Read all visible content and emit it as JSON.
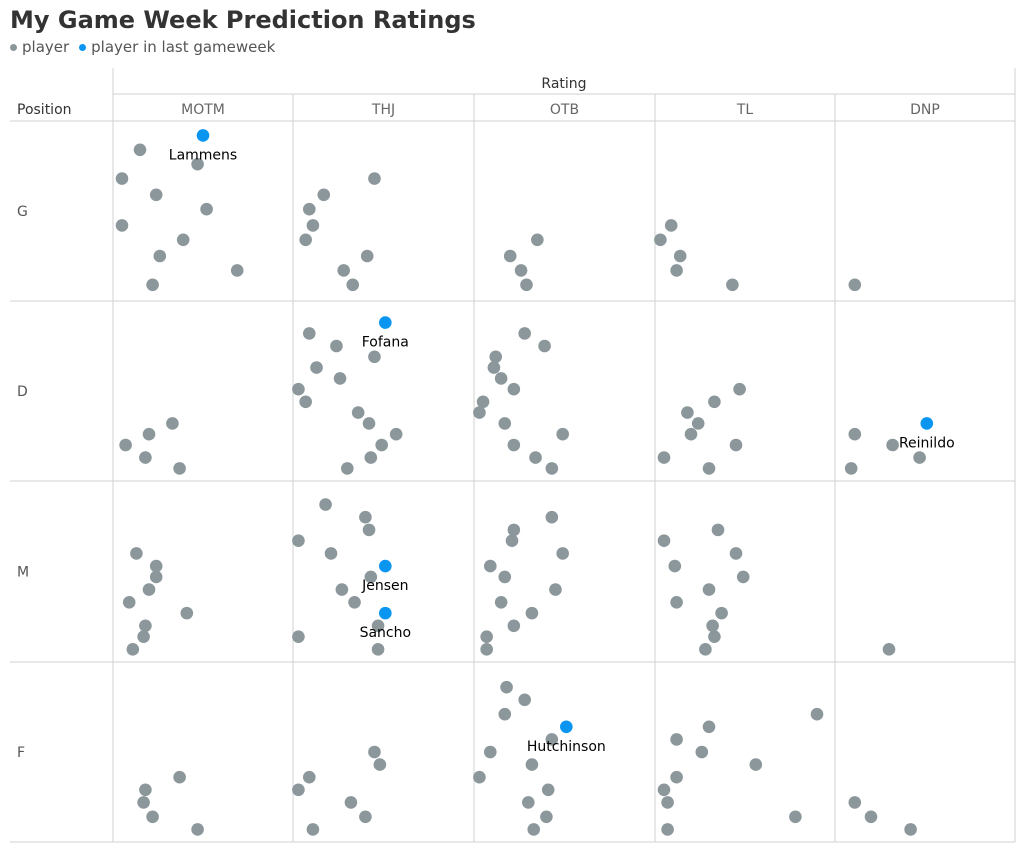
{
  "title": "My Game Week Prediction Ratings",
  "legend": [
    {
      "label": "player",
      "color": "#8c979b"
    },
    {
      "label": "player in last gameweek",
      "color": "#0a96f0"
    }
  ],
  "chart_data": {
    "type": "scatter",
    "title": "My Game Week Prediction Ratings",
    "facet_header": "Rating",
    "row_header": "Position",
    "columns": [
      "MOTM",
      "THJ",
      "OTB",
      "TL",
      "DNP"
    ],
    "rows": [
      "G",
      "D",
      "M",
      "F"
    ],
    "series": [
      {
        "name": "player",
        "color": "#8c979b"
      },
      {
        "name": "player in last gameweek",
        "color": "#0a96f0"
      }
    ],
    "points": [
      {
        "c": 0,
        "r": 0,
        "x": 0.15,
        "y": 0.84,
        "s": 0
      },
      {
        "c": 0,
        "r": 0,
        "x": 0.47,
        "y": 0.76,
        "s": 0
      },
      {
        "c": 0,
        "r": 0,
        "x": 0.05,
        "y": 0.68,
        "s": 0
      },
      {
        "c": 0,
        "r": 0,
        "x": 0.24,
        "y": 0.59,
        "s": 0
      },
      {
        "c": 0,
        "r": 0,
        "x": 0.52,
        "y": 0.51,
        "s": 0
      },
      {
        "c": 0,
        "r": 0,
        "x": 0.05,
        "y": 0.42,
        "s": 0
      },
      {
        "c": 0,
        "r": 0,
        "x": 0.39,
        "y": 0.34,
        "s": 0
      },
      {
        "c": 0,
        "r": 0,
        "x": 0.26,
        "y": 0.25,
        "s": 0
      },
      {
        "c": 0,
        "r": 0,
        "x": 0.69,
        "y": 0.17,
        "s": 0
      },
      {
        "c": 0,
        "r": 0,
        "x": 0.22,
        "y": 0.09,
        "s": 0
      },
      {
        "c": 0,
        "r": 0,
        "x": 0.5,
        "y": 0.92,
        "s": 1,
        "label": "Lammens"
      },
      {
        "c": 1,
        "r": 0,
        "x": 0.45,
        "y": 0.68,
        "s": 0
      },
      {
        "c": 1,
        "r": 0,
        "x": 0.17,
        "y": 0.59,
        "s": 0
      },
      {
        "c": 1,
        "r": 0,
        "x": 0.09,
        "y": 0.51,
        "s": 0
      },
      {
        "c": 1,
        "r": 0,
        "x": 0.11,
        "y": 0.42,
        "s": 0
      },
      {
        "c": 1,
        "r": 0,
        "x": 0.07,
        "y": 0.34,
        "s": 0
      },
      {
        "c": 1,
        "r": 0,
        "x": 0.41,
        "y": 0.25,
        "s": 0
      },
      {
        "c": 1,
        "r": 0,
        "x": 0.28,
        "y": 0.17,
        "s": 0
      },
      {
        "c": 1,
        "r": 0,
        "x": 0.33,
        "y": 0.09,
        "s": 0
      },
      {
        "c": 2,
        "r": 0,
        "x": 0.35,
        "y": 0.34,
        "s": 0
      },
      {
        "c": 2,
        "r": 0,
        "x": 0.2,
        "y": 0.25,
        "s": 0
      },
      {
        "c": 2,
        "r": 0,
        "x": 0.26,
        "y": 0.17,
        "s": 0
      },
      {
        "c": 2,
        "r": 0,
        "x": 0.29,
        "y": 0.09,
        "s": 0
      },
      {
        "c": 3,
        "r": 0,
        "x": 0.09,
        "y": 0.42,
        "s": 0
      },
      {
        "c": 3,
        "r": 0,
        "x": 0.03,
        "y": 0.34,
        "s": 0
      },
      {
        "c": 3,
        "r": 0,
        "x": 0.14,
        "y": 0.25,
        "s": 0
      },
      {
        "c": 3,
        "r": 0,
        "x": 0.12,
        "y": 0.17,
        "s": 0
      },
      {
        "c": 3,
        "r": 0,
        "x": 0.43,
        "y": 0.09,
        "s": 0
      },
      {
        "c": 4,
        "r": 0,
        "x": 0.11,
        "y": 0.09,
        "s": 0
      },
      {
        "c": 0,
        "r": 1,
        "x": 0.33,
        "y": 0.32,
        "s": 0
      },
      {
        "c": 0,
        "r": 1,
        "x": 0.2,
        "y": 0.26,
        "s": 0
      },
      {
        "c": 0,
        "r": 1,
        "x": 0.07,
        "y": 0.2,
        "s": 0
      },
      {
        "c": 0,
        "r": 1,
        "x": 0.18,
        "y": 0.13,
        "s": 0
      },
      {
        "c": 0,
        "r": 1,
        "x": 0.37,
        "y": 0.07,
        "s": 0
      },
      {
        "c": 1,
        "r": 1,
        "x": 0.09,
        "y": 0.82,
        "s": 0
      },
      {
        "c": 1,
        "r": 1,
        "x": 0.24,
        "y": 0.75,
        "s": 0
      },
      {
        "c": 1,
        "r": 1,
        "x": 0.45,
        "y": 0.69,
        "s": 0
      },
      {
        "c": 1,
        "r": 1,
        "x": 0.13,
        "y": 0.63,
        "s": 0
      },
      {
        "c": 1,
        "r": 1,
        "x": 0.26,
        "y": 0.57,
        "s": 0
      },
      {
        "c": 1,
        "r": 1,
        "x": 0.03,
        "y": 0.51,
        "s": 0
      },
      {
        "c": 1,
        "r": 1,
        "x": 0.07,
        "y": 0.44,
        "s": 0
      },
      {
        "c": 1,
        "r": 1,
        "x": 0.36,
        "y": 0.38,
        "s": 0
      },
      {
        "c": 1,
        "r": 1,
        "x": 0.42,
        "y": 0.32,
        "s": 0
      },
      {
        "c": 1,
        "r": 1,
        "x": 0.57,
        "y": 0.26,
        "s": 0
      },
      {
        "c": 1,
        "r": 1,
        "x": 0.49,
        "y": 0.2,
        "s": 0
      },
      {
        "c": 1,
        "r": 1,
        "x": 0.43,
        "y": 0.13,
        "s": 0
      },
      {
        "c": 1,
        "r": 1,
        "x": 0.3,
        "y": 0.07,
        "s": 0
      },
      {
        "c": 1,
        "r": 1,
        "x": 0.51,
        "y": 0.88,
        "s": 1,
        "label": "Fofana"
      },
      {
        "c": 2,
        "r": 1,
        "x": 0.28,
        "y": 0.82,
        "s": 0
      },
      {
        "c": 2,
        "r": 1,
        "x": 0.39,
        "y": 0.75,
        "s": 0
      },
      {
        "c": 2,
        "r": 1,
        "x": 0.12,
        "y": 0.69,
        "s": 0
      },
      {
        "c": 2,
        "r": 1,
        "x": 0.11,
        "y": 0.63,
        "s": 0
      },
      {
        "c": 2,
        "r": 1,
        "x": 0.15,
        "y": 0.57,
        "s": 0
      },
      {
        "c": 2,
        "r": 1,
        "x": 0.22,
        "y": 0.51,
        "s": 0
      },
      {
        "c": 2,
        "r": 1,
        "x": 0.05,
        "y": 0.44,
        "s": 0
      },
      {
        "c": 2,
        "r": 1,
        "x": 0.03,
        "y": 0.38,
        "s": 0
      },
      {
        "c": 2,
        "r": 1,
        "x": 0.17,
        "y": 0.32,
        "s": 0
      },
      {
        "c": 2,
        "r": 1,
        "x": 0.49,
        "y": 0.26,
        "s": 0
      },
      {
        "c": 2,
        "r": 1,
        "x": 0.22,
        "y": 0.2,
        "s": 0
      },
      {
        "c": 2,
        "r": 1,
        "x": 0.34,
        "y": 0.13,
        "s": 0
      },
      {
        "c": 2,
        "r": 1,
        "x": 0.43,
        "y": 0.07,
        "s": 0
      },
      {
        "c": 3,
        "r": 1,
        "x": 0.47,
        "y": 0.51,
        "s": 0
      },
      {
        "c": 3,
        "r": 1,
        "x": 0.33,
        "y": 0.44,
        "s": 0
      },
      {
        "c": 3,
        "r": 1,
        "x": 0.18,
        "y": 0.38,
        "s": 0
      },
      {
        "c": 3,
        "r": 1,
        "x": 0.24,
        "y": 0.32,
        "s": 0
      },
      {
        "c": 3,
        "r": 1,
        "x": 0.2,
        "y": 0.26,
        "s": 0
      },
      {
        "c": 3,
        "r": 1,
        "x": 0.45,
        "y": 0.2,
        "s": 0
      },
      {
        "c": 3,
        "r": 1,
        "x": 0.05,
        "y": 0.13,
        "s": 0
      },
      {
        "c": 3,
        "r": 1,
        "x": 0.3,
        "y": 0.07,
        "s": 0
      },
      {
        "c": 4,
        "r": 1,
        "x": 0.11,
        "y": 0.26,
        "s": 0
      },
      {
        "c": 4,
        "r": 1,
        "x": 0.32,
        "y": 0.2,
        "s": 0
      },
      {
        "c": 4,
        "r": 1,
        "x": 0.47,
        "y": 0.13,
        "s": 0
      },
      {
        "c": 4,
        "r": 1,
        "x": 0.09,
        "y": 0.07,
        "s": 0
      },
      {
        "c": 4,
        "r": 1,
        "x": 0.51,
        "y": 0.32,
        "s": 1,
        "label": "Reinildo"
      },
      {
        "c": 0,
        "r": 2,
        "x": 0.13,
        "y": 0.6,
        "s": 0
      },
      {
        "c": 0,
        "r": 2,
        "x": 0.24,
        "y": 0.53,
        "s": 0
      },
      {
        "c": 0,
        "r": 2,
        "x": 0.24,
        "y": 0.47,
        "s": 0
      },
      {
        "c": 0,
        "r": 2,
        "x": 0.2,
        "y": 0.4,
        "s": 0
      },
      {
        "c": 0,
        "r": 2,
        "x": 0.09,
        "y": 0.33,
        "s": 0
      },
      {
        "c": 0,
        "r": 2,
        "x": 0.41,
        "y": 0.27,
        "s": 0
      },
      {
        "c": 0,
        "r": 2,
        "x": 0.18,
        "y": 0.2,
        "s": 0
      },
      {
        "c": 0,
        "r": 2,
        "x": 0.17,
        "y": 0.14,
        "s": 0
      },
      {
        "c": 0,
        "r": 2,
        "x": 0.11,
        "y": 0.07,
        "s": 0
      },
      {
        "c": 1,
        "r": 2,
        "x": 0.18,
        "y": 0.87,
        "s": 0
      },
      {
        "c": 1,
        "r": 2,
        "x": 0.4,
        "y": 0.8,
        "s": 0
      },
      {
        "c": 1,
        "r": 2,
        "x": 0.42,
        "y": 0.73,
        "s": 0
      },
      {
        "c": 1,
        "r": 2,
        "x": 0.03,
        "y": 0.67,
        "s": 0
      },
      {
        "c": 1,
        "r": 2,
        "x": 0.21,
        "y": 0.6,
        "s": 0
      },
      {
        "c": 1,
        "r": 2,
        "x": 0.43,
        "y": 0.47,
        "s": 0
      },
      {
        "c": 1,
        "r": 2,
        "x": 0.27,
        "y": 0.4,
        "s": 0
      },
      {
        "c": 1,
        "r": 2,
        "x": 0.34,
        "y": 0.33,
        "s": 0
      },
      {
        "c": 1,
        "r": 2,
        "x": 0.47,
        "y": 0.2,
        "s": 0
      },
      {
        "c": 1,
        "r": 2,
        "x": 0.03,
        "y": 0.14,
        "s": 0
      },
      {
        "c": 1,
        "r": 2,
        "x": 0.47,
        "y": 0.07,
        "s": 0
      },
      {
        "c": 1,
        "r": 2,
        "x": 0.51,
        "y": 0.53,
        "s": 1,
        "label": "Jensen"
      },
      {
        "c": 1,
        "r": 2,
        "x": 0.51,
        "y": 0.27,
        "s": 1,
        "label": "Sancho"
      },
      {
        "c": 2,
        "r": 2,
        "x": 0.43,
        "y": 0.8,
        "s": 0
      },
      {
        "c": 2,
        "r": 2,
        "x": 0.22,
        "y": 0.73,
        "s": 0
      },
      {
        "c": 2,
        "r": 2,
        "x": 0.21,
        "y": 0.67,
        "s": 0
      },
      {
        "c": 2,
        "r": 2,
        "x": 0.49,
        "y": 0.6,
        "s": 0
      },
      {
        "c": 2,
        "r": 2,
        "x": 0.09,
        "y": 0.53,
        "s": 0
      },
      {
        "c": 2,
        "r": 2,
        "x": 0.17,
        "y": 0.47,
        "s": 0
      },
      {
        "c": 2,
        "r": 2,
        "x": 0.45,
        "y": 0.4,
        "s": 0
      },
      {
        "c": 2,
        "r": 2,
        "x": 0.15,
        "y": 0.33,
        "s": 0
      },
      {
        "c": 2,
        "r": 2,
        "x": 0.32,
        "y": 0.27,
        "s": 0
      },
      {
        "c": 2,
        "r": 2,
        "x": 0.22,
        "y": 0.2,
        "s": 0
      },
      {
        "c": 2,
        "r": 2,
        "x": 0.07,
        "y": 0.14,
        "s": 0
      },
      {
        "c": 2,
        "r": 2,
        "x": 0.07,
        "y": 0.07,
        "s": 0
      },
      {
        "c": 3,
        "r": 2,
        "x": 0.35,
        "y": 0.73,
        "s": 0
      },
      {
        "c": 3,
        "r": 2,
        "x": 0.05,
        "y": 0.67,
        "s": 0
      },
      {
        "c": 3,
        "r": 2,
        "x": 0.45,
        "y": 0.6,
        "s": 0
      },
      {
        "c": 3,
        "r": 2,
        "x": 0.11,
        "y": 0.53,
        "s": 0
      },
      {
        "c": 3,
        "r": 2,
        "x": 0.49,
        "y": 0.47,
        "s": 0
      },
      {
        "c": 3,
        "r": 2,
        "x": 0.3,
        "y": 0.4,
        "s": 0
      },
      {
        "c": 3,
        "r": 2,
        "x": 0.12,
        "y": 0.33,
        "s": 0
      },
      {
        "c": 3,
        "r": 2,
        "x": 0.37,
        "y": 0.27,
        "s": 0
      },
      {
        "c": 3,
        "r": 2,
        "x": 0.32,
        "y": 0.2,
        "s": 0
      },
      {
        "c": 3,
        "r": 2,
        "x": 0.33,
        "y": 0.14,
        "s": 0
      },
      {
        "c": 3,
        "r": 2,
        "x": 0.28,
        "y": 0.07,
        "s": 0
      },
      {
        "c": 4,
        "r": 2,
        "x": 0.3,
        "y": 0.07,
        "s": 0
      },
      {
        "c": 0,
        "r": 3,
        "x": 0.37,
        "y": 0.36,
        "s": 0
      },
      {
        "c": 0,
        "r": 3,
        "x": 0.18,
        "y": 0.29,
        "s": 0
      },
      {
        "c": 0,
        "r": 3,
        "x": 0.17,
        "y": 0.22,
        "s": 0
      },
      {
        "c": 0,
        "r": 3,
        "x": 0.22,
        "y": 0.14,
        "s": 0
      },
      {
        "c": 0,
        "r": 3,
        "x": 0.47,
        "y": 0.07,
        "s": 0
      },
      {
        "c": 1,
        "r": 3,
        "x": 0.45,
        "y": 0.5,
        "s": 0
      },
      {
        "c": 1,
        "r": 3,
        "x": 0.48,
        "y": 0.43,
        "s": 0
      },
      {
        "c": 1,
        "r": 3,
        "x": 0.09,
        "y": 0.36,
        "s": 0
      },
      {
        "c": 1,
        "r": 3,
        "x": 0.03,
        "y": 0.29,
        "s": 0
      },
      {
        "c": 1,
        "r": 3,
        "x": 0.32,
        "y": 0.22,
        "s": 0
      },
      {
        "c": 1,
        "r": 3,
        "x": 0.4,
        "y": 0.14,
        "s": 0
      },
      {
        "c": 1,
        "r": 3,
        "x": 0.11,
        "y": 0.07,
        "s": 0
      },
      {
        "c": 2,
        "r": 3,
        "x": 0.18,
        "y": 0.86,
        "s": 0
      },
      {
        "c": 2,
        "r": 3,
        "x": 0.28,
        "y": 0.79,
        "s": 0
      },
      {
        "c": 2,
        "r": 3,
        "x": 0.17,
        "y": 0.71,
        "s": 0
      },
      {
        "c": 2,
        "r": 3,
        "x": 0.43,
        "y": 0.57,
        "s": 0
      },
      {
        "c": 2,
        "r": 3,
        "x": 0.09,
        "y": 0.5,
        "s": 0
      },
      {
        "c": 2,
        "r": 3,
        "x": 0.32,
        "y": 0.43,
        "s": 0
      },
      {
        "c": 2,
        "r": 3,
        "x": 0.03,
        "y": 0.36,
        "s": 0
      },
      {
        "c": 2,
        "r": 3,
        "x": 0.41,
        "y": 0.29,
        "s": 0
      },
      {
        "c": 2,
        "r": 3,
        "x": 0.3,
        "y": 0.22,
        "s": 0
      },
      {
        "c": 2,
        "r": 3,
        "x": 0.4,
        "y": 0.14,
        "s": 0
      },
      {
        "c": 2,
        "r": 3,
        "x": 0.33,
        "y": 0.07,
        "s": 0
      },
      {
        "c": 2,
        "r": 3,
        "x": 0.51,
        "y": 0.64,
        "s": 1,
        "label": "Hutchinson"
      },
      {
        "c": 3,
        "r": 3,
        "x": 0.9,
        "y": 0.71,
        "s": 0
      },
      {
        "c": 3,
        "r": 3,
        "x": 0.3,
        "y": 0.64,
        "s": 0
      },
      {
        "c": 3,
        "r": 3,
        "x": 0.12,
        "y": 0.57,
        "s": 0
      },
      {
        "c": 3,
        "r": 3,
        "x": 0.26,
        "y": 0.5,
        "s": 0
      },
      {
        "c": 3,
        "r": 3,
        "x": 0.56,
        "y": 0.43,
        "s": 0
      },
      {
        "c": 3,
        "r": 3,
        "x": 0.12,
        "y": 0.36,
        "s": 0
      },
      {
        "c": 3,
        "r": 3,
        "x": 0.05,
        "y": 0.29,
        "s": 0
      },
      {
        "c": 3,
        "r": 3,
        "x": 0.07,
        "y": 0.22,
        "s": 0
      },
      {
        "c": 3,
        "r": 3,
        "x": 0.78,
        "y": 0.14,
        "s": 0
      },
      {
        "c": 3,
        "r": 3,
        "x": 0.07,
        "y": 0.07,
        "s": 0
      },
      {
        "c": 4,
        "r": 3,
        "x": 0.11,
        "y": 0.22,
        "s": 0
      },
      {
        "c": 4,
        "r": 3,
        "x": 0.2,
        "y": 0.14,
        "s": 0
      },
      {
        "c": 4,
        "r": 3,
        "x": 0.42,
        "y": 0.07,
        "s": 0
      }
    ],
    "grid": true
  }
}
